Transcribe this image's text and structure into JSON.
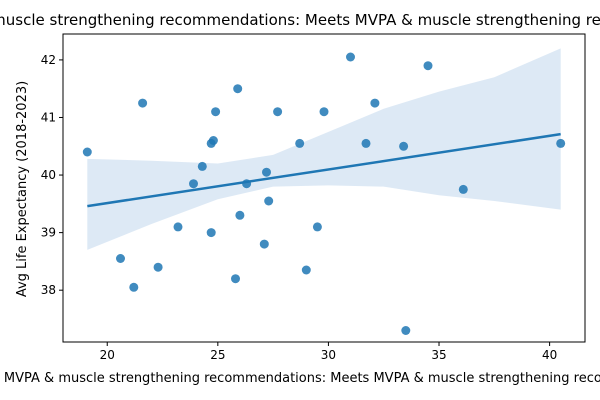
{
  "chart_data": {
    "type": "scatter",
    "title": "Meets MVPA & muscle strengthening recommendations: Meets MVPA & muscle strengthening recommendations",
    "xlabel": "Meets MVPA & muscle strengthening recommendations: Meets MVPA & muscle strengthening recommendations",
    "ylabel": "Avg Life Expectancy (2018-2023)",
    "xlim": [
      18.0,
      41.6
    ],
    "ylim": [
      37.1,
      42.45
    ],
    "x_ticks": [
      20,
      25,
      30,
      35,
      40
    ],
    "y_ticks": [
      38,
      39,
      40,
      41,
      42
    ],
    "point_color": "#1f77b4",
    "band_color": "#c6dbef",
    "x": [
      19.1,
      20.6,
      21.2,
      21.6,
      22.3,
      23.2,
      23.9,
      24.3,
      24.7,
      24.7,
      24.8,
      24.9,
      25.8,
      25.9,
      26.0,
      26.3,
      27.1,
      27.2,
      27.3,
      27.7,
      28.7,
      29.0,
      29.5,
      29.8,
      31.0,
      31.7,
      32.1,
      33.4,
      33.5,
      34.5,
      36.1,
      40.5
    ],
    "y": [
      40.4,
      38.55,
      38.05,
      41.25,
      38.4,
      39.1,
      39.85,
      40.15,
      39.0,
      40.55,
      40.6,
      41.1,
      38.2,
      41.5,
      39.3,
      39.85,
      38.8,
      40.05,
      39.55,
      41.1,
      40.55,
      38.35,
      39.1,
      41.1,
      42.05,
      40.55,
      41.25,
      40.5,
      37.3,
      41.9,
      39.75,
      40.55
    ],
    "regression": {
      "x_start": 19.1,
      "x_end": 40.5,
      "y_start": 39.46,
      "y_end": 40.71
    },
    "confidence_band": {
      "x": [
        19.1,
        22.0,
        25.0,
        27.5,
        30.0,
        32.5,
        35.0,
        37.5,
        40.5
      ],
      "lower": [
        38.7,
        39.15,
        39.58,
        39.8,
        39.82,
        39.8,
        39.65,
        39.55,
        39.4
      ],
      "upper": [
        40.28,
        40.25,
        40.2,
        40.35,
        40.75,
        41.15,
        41.45,
        41.7,
        42.2
      ]
    }
  }
}
